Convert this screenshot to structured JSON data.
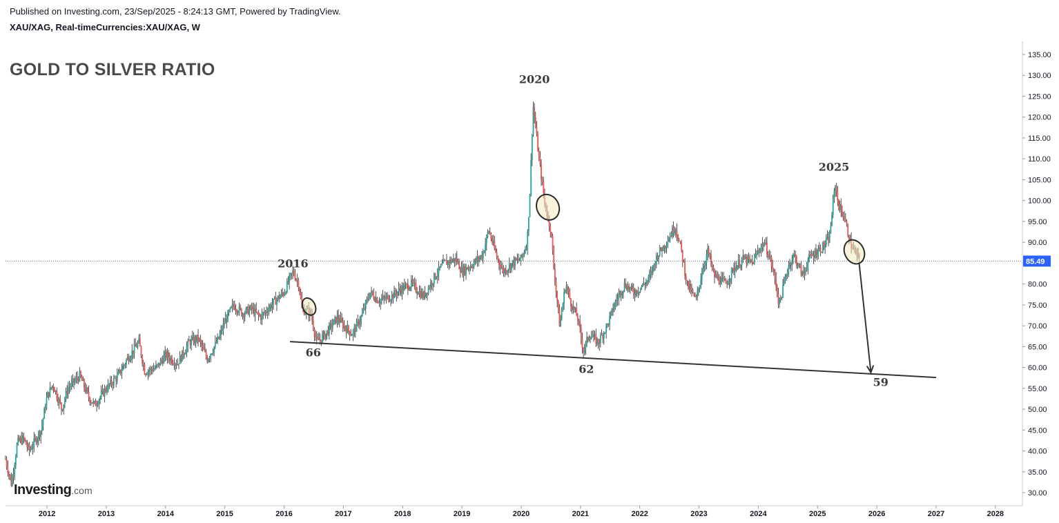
{
  "header": {
    "published": "Published on Investing.com, 23/Sep/2025 - 8:24:13 GMT, Powered by TradingView.",
    "symbol": "XAU/XAG, Real-timeCurrencies:XAU/XAG, W"
  },
  "logo": {
    "main": "Investing",
    "suffix": ".com"
  },
  "colors": {
    "up": "#26a69a",
    "down": "#ef5350",
    "wick": "#131722",
    "line": "#333333",
    "price": "#2962ff"
  },
  "chart_data": {
    "type": "candlestick",
    "title": "GOLD TO SILVER RATIO",
    "interval": "W",
    "y_axis": {
      "side": "right",
      "ylim": [
        28,
        137
      ],
      "ticks": [
        "135.00",
        "130.00",
        "125.00",
        "120.00",
        "115.00",
        "110.00",
        "105.00",
        "100.00",
        "95.00",
        "90.00",
        "85.00",
        "80.00",
        "75.00",
        "70.00",
        "65.00",
        "60.00",
        "55.00",
        "50.00",
        "45.00",
        "40.00",
        "35.00",
        "30.00"
      ]
    },
    "x_axis": {
      "ticks": [
        "2012",
        "2013",
        "2014",
        "2015",
        "2016",
        "2017",
        "2018",
        "2019",
        "2020",
        "2021",
        "2022",
        "2023",
        "2024",
        "2025",
        "2026",
        "2027",
        "2028"
      ]
    },
    "last_price": {
      "value": 85.49,
      "label": "85.49"
    },
    "series": [
      {
        "path": [
          [
            2011.3,
            38
          ],
          [
            2011.4,
            32
          ],
          [
            2011.5,
            42
          ],
          [
            2011.6,
            43
          ],
          [
            2011.7,
            40
          ],
          [
            2011.9,
            45
          ],
          [
            2012.0,
            53
          ],
          [
            2012.1,
            56
          ],
          [
            2012.25,
            50
          ],
          [
            2012.35,
            55
          ],
          [
            2012.55,
            58
          ],
          [
            2012.7,
            53
          ],
          [
            2012.8,
            51
          ],
          [
            2013.0,
            55
          ],
          [
            2013.2,
            58
          ],
          [
            2013.35,
            62
          ],
          [
            2013.55,
            66
          ],
          [
            2013.65,
            59
          ],
          [
            2013.85,
            60
          ],
          [
            2014.0,
            63
          ],
          [
            2014.2,
            61
          ],
          [
            2014.4,
            66
          ],
          [
            2014.55,
            67
          ],
          [
            2014.7,
            62
          ],
          [
            2014.9,
            67
          ],
          [
            2015.0,
            71
          ],
          [
            2015.15,
            75
          ],
          [
            2015.3,
            73
          ],
          [
            2015.45,
            74
          ],
          [
            2015.6,
            72
          ],
          [
            2015.85,
            76
          ],
          [
            2016.0,
            78
          ],
          [
            2016.15,
            83
          ],
          [
            2016.25,
            80
          ],
          [
            2016.3,
            74
          ],
          [
            2016.45,
            73
          ],
          [
            2016.55,
            66
          ],
          [
            2016.7,
            68
          ],
          [
            2016.9,
            72
          ],
          [
            2017.0,
            70
          ],
          [
            2017.15,
            68
          ],
          [
            2017.3,
            72
          ],
          [
            2017.45,
            78
          ],
          [
            2017.6,
            76
          ],
          [
            2017.8,
            77
          ],
          [
            2018.0,
            79
          ],
          [
            2018.15,
            80
          ],
          [
            2018.35,
            77
          ],
          [
            2018.55,
            82
          ],
          [
            2018.7,
            85
          ],
          [
            2018.9,
            86
          ],
          [
            2019.0,
            83
          ],
          [
            2019.2,
            85
          ],
          [
            2019.35,
            87
          ],
          [
            2019.45,
            93
          ],
          [
            2019.6,
            86
          ],
          [
            2019.7,
            83
          ],
          [
            2019.85,
            85
          ],
          [
            2020.0,
            86
          ],
          [
            2020.1,
            90
          ],
          [
            2020.15,
            103
          ],
          [
            2020.2,
            123
          ],
          [
            2020.3,
            110
          ],
          [
            2020.4,
            99
          ],
          [
            2020.5,
            93
          ],
          [
            2020.55,
            84
          ],
          [
            2020.65,
            70
          ],
          [
            2020.75,
            80
          ],
          [
            2020.85,
            75
          ],
          [
            2020.95,
            72
          ],
          [
            2021.05,
            64
          ],
          [
            2021.15,
            68
          ],
          [
            2021.3,
            66
          ],
          [
            2021.45,
            70
          ],
          [
            2021.6,
            76
          ],
          [
            2021.75,
            80
          ],
          [
            2021.9,
            78
          ],
          [
            2022.0,
            79
          ],
          [
            2022.15,
            81
          ],
          [
            2022.3,
            87
          ],
          [
            2022.45,
            90
          ],
          [
            2022.6,
            94
          ],
          [
            2022.7,
            88
          ],
          [
            2022.8,
            80
          ],
          [
            2022.95,
            76
          ],
          [
            2023.05,
            83
          ],
          [
            2023.15,
            88
          ],
          [
            2023.25,
            82
          ],
          [
            2023.45,
            80
          ],
          [
            2023.6,
            84
          ],
          [
            2023.75,
            86
          ],
          [
            2023.9,
            85
          ],
          [
            2024.0,
            88
          ],
          [
            2024.1,
            90
          ],
          [
            2024.2,
            86
          ],
          [
            2024.3,
            80
          ],
          [
            2024.35,
            75
          ],
          [
            2024.5,
            84
          ],
          [
            2024.6,
            87
          ],
          [
            2024.75,
            82
          ],
          [
            2024.85,
            86
          ],
          [
            2025.0,
            88
          ],
          [
            2025.1,
            89
          ],
          [
            2025.2,
            91
          ],
          [
            2025.25,
            98
          ],
          [
            2025.3,
            104
          ],
          [
            2025.35,
            99
          ],
          [
            2025.45,
            96
          ],
          [
            2025.55,
            90
          ],
          [
            2025.65,
            87
          ],
          [
            2025.72,
            85.49
          ]
        ]
      }
    ],
    "annotations": [
      {
        "label": "2016",
        "x": 2016.15,
        "y": 83
      },
      {
        "label": "2020",
        "x": 2020.2,
        "y": 127
      },
      {
        "label": "2025",
        "x": 2025.3,
        "y": 106
      },
      {
        "label": "66",
        "x": 2016.55,
        "y": 66
      },
      {
        "label": "62",
        "x": 2021.1,
        "y": 62
      },
      {
        "label": "59",
        "x": 2025.95,
        "y": 59
      }
    ],
    "trendline": [
      [
        2016.1,
        66.2
      ],
      [
        2027.0,
        57.6
      ]
    ],
    "arrow": [
      [
        2025.7,
        85.2
      ],
      [
        2025.9,
        58.8
      ]
    ],
    "circled": [
      {
        "x": 2016.42,
        "y": 74.6
      },
      {
        "x": 2020.45,
        "y": 98.4
      },
      {
        "x": 2025.62,
        "y": 87.7
      }
    ]
  }
}
